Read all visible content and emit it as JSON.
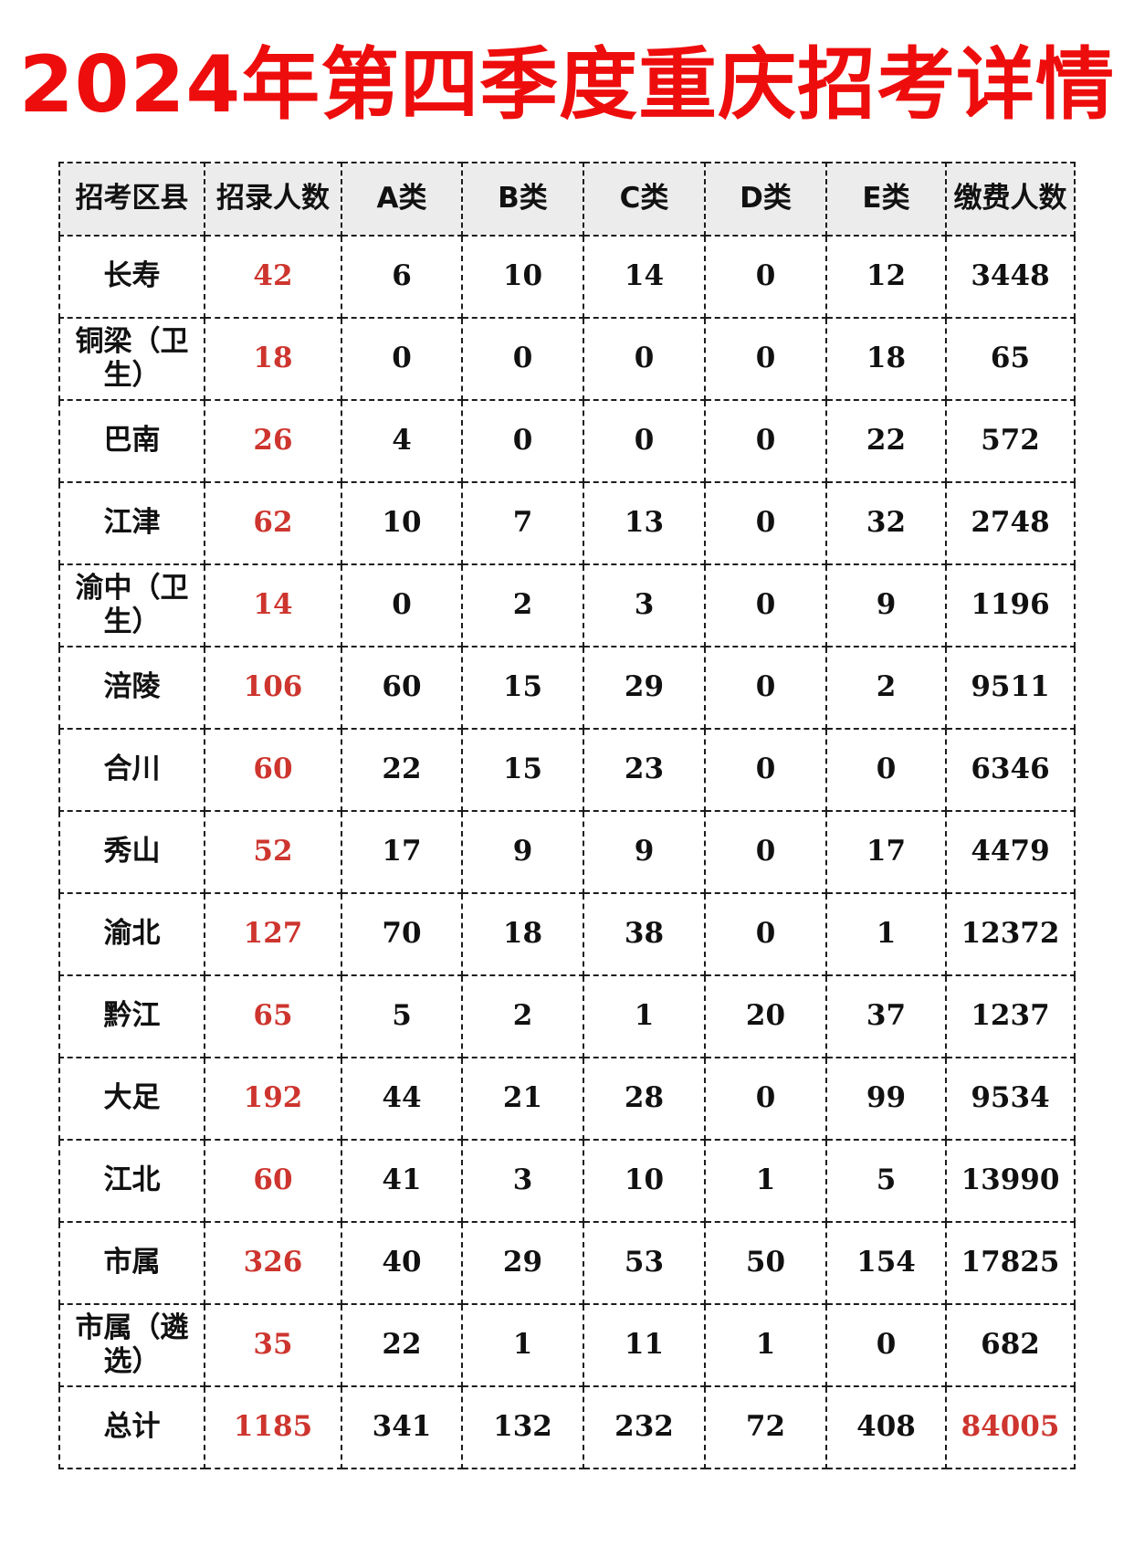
{
  "title": "2024年第四季度重庆招考详情",
  "colors": {
    "title_red": "#ee0d0d",
    "value_red": "#cd352e",
    "header_bg": "#ececec",
    "border": "#1c1c1c"
  },
  "chart_data": {
    "type": "table",
    "title": "2024年第四季度重庆招考详情",
    "columns": [
      "招考区县",
      "招录人数",
      "A类",
      "B类",
      "C类",
      "D类",
      "E类",
      "缴费人数"
    ],
    "rows": [
      [
        "长寿",
        "42",
        "6",
        "10",
        "14",
        "0",
        "12",
        "3448"
      ],
      [
        "铜梁（卫生）",
        "18",
        "0",
        "0",
        "0",
        "0",
        "18",
        "65"
      ],
      [
        "巴南",
        "26",
        "4",
        "0",
        "0",
        "0",
        "22",
        "572"
      ],
      [
        "江津",
        "62",
        "10",
        "7",
        "13",
        "0",
        "32",
        "2748"
      ],
      [
        "渝中（卫生）",
        "14",
        "0",
        "2",
        "3",
        "0",
        "9",
        "1196"
      ],
      [
        "涪陵",
        "106",
        "60",
        "15",
        "29",
        "0",
        "2",
        "9511"
      ],
      [
        "合川",
        "60",
        "22",
        "15",
        "23",
        "0",
        "0",
        "6346"
      ],
      [
        "秀山",
        "52",
        "17",
        "9",
        "9",
        "0",
        "17",
        "4479"
      ],
      [
        "渝北",
        "127",
        "70",
        "18",
        "38",
        "0",
        "1",
        "12372"
      ],
      [
        "黔江",
        "65",
        "5",
        "2",
        "1",
        "20",
        "37",
        "1237"
      ],
      [
        "大足",
        "192",
        "44",
        "21",
        "28",
        "0",
        "99",
        "9534"
      ],
      [
        "江北",
        "60",
        "41",
        "3",
        "10",
        "1",
        "5",
        "13990"
      ],
      [
        "市属",
        "326",
        "40",
        "29",
        "53",
        "50",
        "154",
        "17825"
      ],
      [
        "市属（遴选）",
        "35",
        "22",
        "1",
        "11",
        "1",
        "0",
        "682"
      ],
      [
        "总计",
        "1185",
        "341",
        "132",
        "232",
        "72",
        "408",
        "84005"
      ]
    ],
    "red_column_index": 1,
    "red_cells_extra": [
      [
        14,
        7
      ]
    ]
  }
}
